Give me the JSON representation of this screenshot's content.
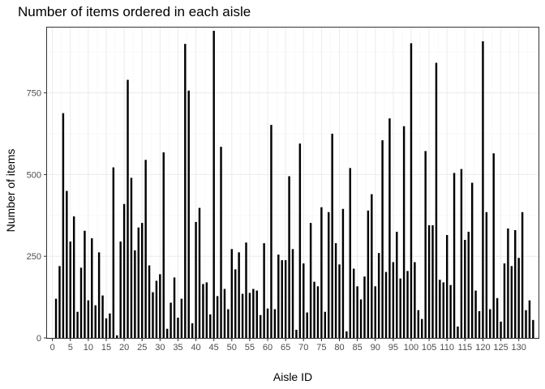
{
  "chart_data": {
    "type": "bar",
    "title": "Number of items ordered in each aisle",
    "xlabel": "Aisle ID",
    "ylabel": "Number of items",
    "xlim": [
      -1.5,
      135.5
    ],
    "ylim": [
      0,
      950
    ],
    "x_ticks": [
      0,
      5,
      10,
      15,
      20,
      25,
      30,
      35,
      40,
      45,
      50,
      55,
      60,
      65,
      70,
      75,
      80,
      85,
      90,
      95,
      100,
      105,
      110,
      115,
      120,
      125,
      130
    ],
    "y_ticks": [
      0,
      250,
      500,
      750
    ],
    "grid": true,
    "bar_color": "#000000",
    "x": [
      1,
      2,
      3,
      4,
      5,
      6,
      7,
      8,
      9,
      10,
      11,
      12,
      13,
      14,
      15,
      16,
      17,
      18,
      19,
      20,
      21,
      22,
      23,
      24,
      25,
      26,
      27,
      28,
      29,
      30,
      31,
      32,
      33,
      34,
      35,
      36,
      37,
      38,
      39,
      40,
      41,
      42,
      43,
      44,
      45,
      46,
      47,
      48,
      49,
      50,
      51,
      52,
      53,
      54,
      55,
      56,
      57,
      58,
      59,
      60,
      61,
      62,
      63,
      64,
      65,
      66,
      67,
      68,
      69,
      70,
      71,
      72,
      73,
      74,
      75,
      76,
      77,
      78,
      79,
      80,
      81,
      82,
      83,
      84,
      85,
      86,
      87,
      88,
      89,
      90,
      91,
      92,
      93,
      94,
      95,
      96,
      97,
      98,
      99,
      100,
      101,
      102,
      103,
      104,
      105,
      106,
      107,
      108,
      109,
      110,
      111,
      112,
      113,
      114,
      115,
      116,
      117,
      118,
      119,
      120,
      121,
      122,
      123,
      124,
      125,
      126,
      127,
      128,
      129,
      130,
      131,
      132,
      133,
      134
    ],
    "values": [
      120,
      220,
      688,
      450,
      295,
      372,
      80,
      215,
      328,
      115,
      305,
      100,
      262,
      130,
      60,
      75,
      522,
      8,
      295,
      410,
      790,
      490,
      268,
      338,
      352,
      545,
      222,
      140,
      175,
      195,
      568,
      28,
      108,
      185,
      62,
      120,
      900,
      757,
      45,
      355,
      398,
      165,
      170,
      72,
      940,
      128,
      585,
      150,
      88,
      272,
      210,
      262,
      135,
      292,
      138,
      150,
      145,
      70,
      290,
      90,
      652,
      88,
      255,
      238,
      238,
      495,
      272,
      25,
      595,
      228,
      78,
      352,
      172,
      158,
      400,
      80,
      385,
      625,
      290,
      225,
      395,
      20,
      520,
      212,
      158,
      118,
      188,
      390,
      440,
      158,
      260,
      605,
      202,
      672,
      232,
      325,
      182,
      648,
      205,
      902,
      232,
      85,
      58,
      572,
      345,
      345,
      842,
      178,
      170,
      315,
      162,
      505,
      35,
      517,
      300,
      325,
      475,
      145,
      82,
      908,
      385,
      88,
      565,
      122,
      50,
      228,
      335,
      220,
      330,
      245,
      385,
      85,
      115,
      55
    ]
  }
}
